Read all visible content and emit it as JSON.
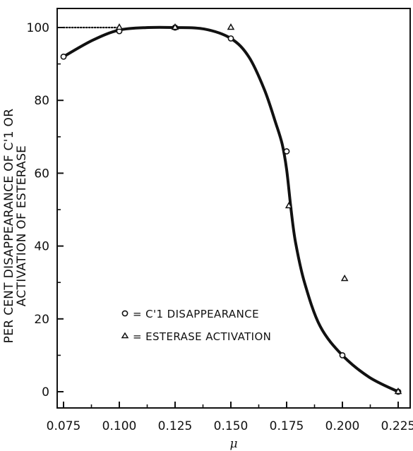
{
  "chart_data": {
    "type": "scatter",
    "title": "",
    "xlabel": "μ",
    "ylabel_lines": [
      "PER CENT DISAPPEARANCE OF C'1 OR",
      "ACTIVATION OF ESTERASE"
    ],
    "xlim": [
      0.075,
      0.225
    ],
    "ylim": [
      0,
      100
    ],
    "x_tick_labels": [
      "0.075",
      "0.100",
      "0.125",
      "0.150",
      "0.175",
      "0.200",
      "0.225"
    ],
    "y_tick_labels": [
      "0",
      "20",
      "40",
      "60",
      "80",
      "100"
    ],
    "grid": false,
    "legend_position": "lower-left",
    "series": [
      {
        "name": "= C'1 DISAPPEARANCE",
        "marker": "circle",
        "x": [
          0.075,
          0.1,
          0.125,
          0.15,
          0.175,
          0.2,
          0.225
        ],
        "y": [
          92,
          99,
          100,
          97,
          66,
          10,
          0
        ]
      },
      {
        "name": "= ESTERASE ACTIVATION",
        "marker": "triangle",
        "x": [
          0.1,
          0.125,
          0.15,
          0.176,
          0.201,
          0.225
        ],
        "y": [
          100,
          100,
          100,
          51,
          31,
          0
        ]
      }
    ],
    "curves": [
      {
        "style": "solid",
        "x": [
          0.075,
          0.088,
          0.1,
          0.113,
          0.125,
          0.138,
          0.15,
          0.158,
          0.165,
          0.17,
          0.173,
          0.175,
          0.177,
          0.179,
          0.183,
          0.19,
          0.2,
          0.212,
          0.225
        ],
        "y": [
          92,
          96.5,
          99.3,
          100,
          100,
          99.6,
          97,
          92,
          83,
          74,
          68,
          61,
          50,
          41,
          30,
          18,
          10,
          4,
          0
        ]
      },
      {
        "style": "dotted",
        "x": [
          0.075,
          0.1
        ],
        "y": [
          100,
          100
        ]
      }
    ]
  }
}
